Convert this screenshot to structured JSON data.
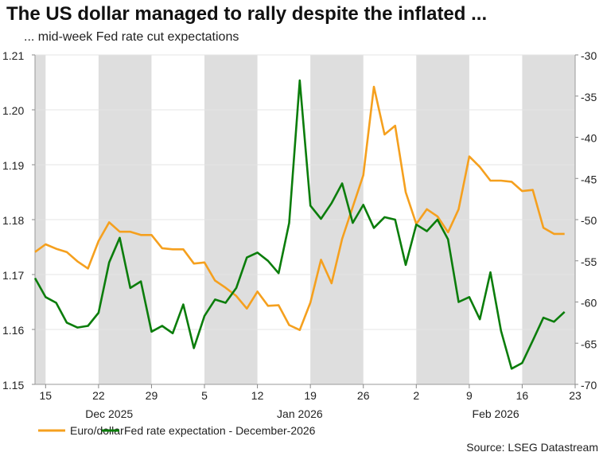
{
  "chart_data": {
    "type": "line",
    "title": "The US dollar managed to rally despite the inflated ...",
    "subtitle": "... mid-week Fed rate cut expectations",
    "source": "Source: LSEG Datastream",
    "x": [
      "2025-12-12",
      "2025-12-15",
      "2025-12-16",
      "2025-12-17",
      "2025-12-18",
      "2025-12-19",
      "2025-12-22",
      "2025-12-23",
      "2025-12-24",
      "2025-12-25",
      "2025-12-26",
      "2025-12-29",
      "2025-12-30",
      "2025-12-31",
      "2026-01-01",
      "2026-01-02",
      "2026-01-05",
      "2026-01-06",
      "2026-01-07",
      "2026-01-08",
      "2026-01-09",
      "2026-01-12",
      "2026-01-13",
      "2026-01-14",
      "2026-01-15",
      "2026-01-16",
      "2026-01-19",
      "2026-01-20",
      "2026-01-21",
      "2026-01-22",
      "2026-01-23",
      "2026-01-26",
      "2026-01-27",
      "2026-01-28",
      "2026-01-29",
      "2026-01-30",
      "2026-02-02",
      "2026-02-03",
      "2026-02-04",
      "2026-02-05",
      "2026-02-06",
      "2026-02-09",
      "2026-02-10",
      "2026-02-11",
      "2026-02-12",
      "2026-02-13",
      "2026-02-16",
      "2026-02-17",
      "2026-02-18",
      "2026-02-19",
      "2026-02-20"
    ],
    "x_tick_labels": [
      "15",
      "22",
      "29",
      "5",
      "12",
      "19",
      "26",
      "2",
      "9",
      "16",
      "23"
    ],
    "month_labels": [
      "Dec 2025",
      "Jan 2026",
      "Feb 2026"
    ],
    "y_left": {
      "ylim": [
        1.15,
        1.21
      ],
      "ticks": [
        "1.15",
        "1.16",
        "1.17",
        "1.18",
        "1.19",
        "1.20",
        "1.21"
      ]
    },
    "y_right": {
      "ylim": [
        -70,
        -30
      ],
      "ticks": [
        "-70",
        "-65",
        "-60",
        "-55",
        "-50",
        "-45",
        "-40",
        "-35",
        "-30"
      ]
    },
    "grid": "horizontal",
    "shading": "alternate weeks shaded gray",
    "legend_position": "bottom-left",
    "series": [
      {
        "name": "Euro/dollar",
        "axis": "left",
        "color": "#f5a01e",
        "values": [
          1.1741,
          1.1755,
          1.1747,
          1.1741,
          1.1724,
          1.1711,
          1.1761,
          1.1795,
          1.1778,
          1.1778,
          1.1772,
          1.1772,
          1.1748,
          1.1746,
          1.1746,
          1.172,
          1.1722,
          1.1689,
          1.1676,
          1.1661,
          1.1638,
          1.1669,
          1.1643,
          1.1644,
          1.1608,
          1.1599,
          1.1649,
          1.1727,
          1.1684,
          1.1765,
          1.1823,
          1.1881,
          1.2042,
          1.1955,
          1.1971,
          1.185,
          1.1792,
          1.1819,
          1.1806,
          1.1777,
          1.1819,
          1.1915,
          1.1896,
          1.1871,
          1.1871,
          1.1869,
          1.1852,
          1.1854,
          1.1785,
          1.1774,
          1.1774
        ]
      },
      {
        "name": "Fed rate expectation - December-2026",
        "axis": "right",
        "color": "#0b7d0b",
        "values": [
          -57.1,
          -59.4,
          -60.1,
          -62.5,
          -63.1,
          -62.9,
          -61.3,
          -55.2,
          -52.2,
          -58.3,
          -57.5,
          -63.6,
          -62.9,
          -63.8,
          -60.3,
          -65.6,
          -61.7,
          -59.7,
          -60.1,
          -58.3,
          -54.6,
          -54.0,
          -55.0,
          -56.5,
          -50.4,
          -33.1,
          -48.3,
          -49.9,
          -48.0,
          -45.6,
          -50.4,
          -48.2,
          -51.0,
          -49.7,
          -50.0,
          -55.5,
          -50.6,
          -51.4,
          -50.0,
          -52.4,
          -60.0,
          -59.4,
          -62.1,
          -56.4,
          -63.5,
          -68.1,
          -67.4,
          -64.7,
          -61.9,
          -62.4,
          -61.2
        ]
      }
    ]
  }
}
